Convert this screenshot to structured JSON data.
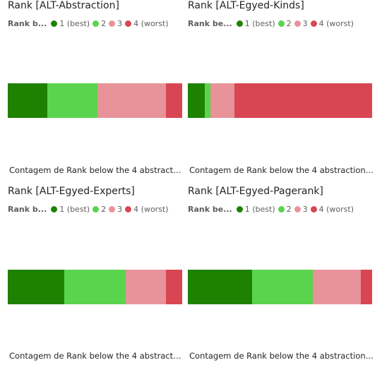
{
  "colors": {
    "1": "#1e8200",
    "2": "#5ad44c",
    "3": "#e8939a",
    "4": "#d84653"
  },
  "legend": {
    "title": "Rank b...",
    "items": [
      {
        "key": "1",
        "label": "1 (best)"
      },
      {
        "key": "2",
        "label": "2"
      },
      {
        "key": "3",
        "label": "3"
      },
      {
        "key": "4",
        "label": "4 (worst)"
      }
    ]
  },
  "legend_title_right": "Rank be...",
  "chart_data": [
    {
      "type": "bar",
      "title": "Rank [ALT-Abstraction]",
      "xlabel": "Contagem de Rank below the 4 abstracti...",
      "categories": [
        "1 (best)",
        "2",
        "3",
        "4 (worst)"
      ],
      "values": [
        22,
        28,
        38,
        9
      ]
    },
    {
      "type": "bar",
      "title": "Rank [ALT-Egyed-Kinds]",
      "xlabel": "Contagem de Rank below the 4 abstraction...",
      "categories": [
        "1 (best)",
        "2",
        "3",
        "4 (worst)"
      ],
      "values": [
        9,
        3,
        13,
        74
      ]
    },
    {
      "type": "bar",
      "title": "Rank [ALT-Egyed-Experts]",
      "xlabel": "Contagem de Rank below the 4 abstracti...",
      "categories": [
        "1 (best)",
        "2",
        "3",
        "4 (worst)"
      ],
      "values": [
        31,
        34,
        22,
        9
      ]
    },
    {
      "type": "bar",
      "title": "Rank [ALT-Egyed-Pagerank]",
      "xlabel": "Contagem de Rank below the 4 abstraction...",
      "categories": [
        "1 (best)",
        "2",
        "3",
        "4 (worst)"
      ],
      "values": [
        35,
        33,
        26,
        6
      ]
    }
  ]
}
